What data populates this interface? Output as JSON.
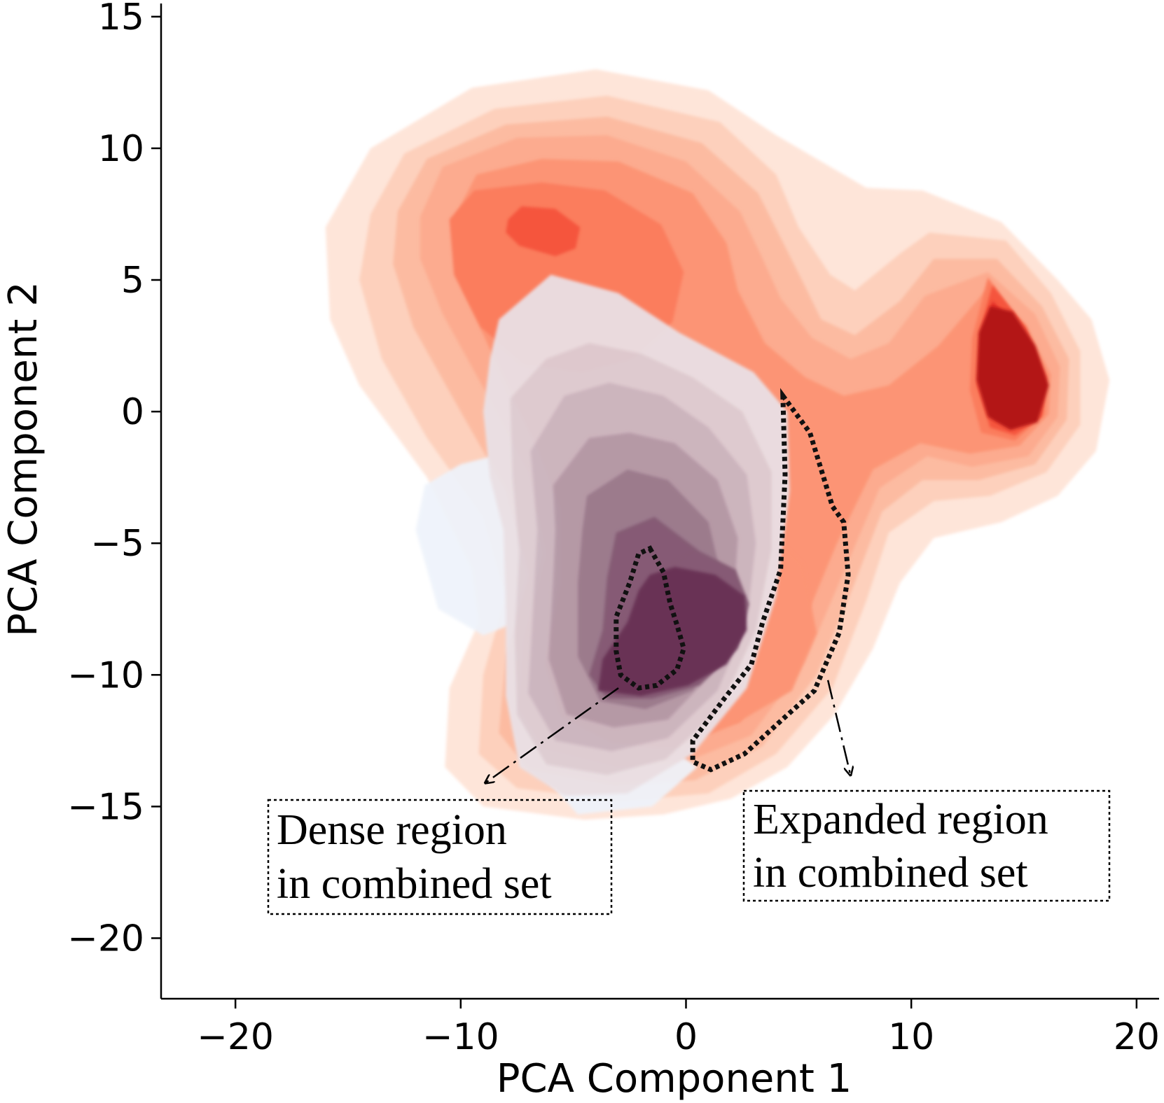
{
  "chart_data": {
    "type": "kde-contour",
    "title": "",
    "xlabel": "PCA Component 1",
    "ylabel": "PCA Component 2",
    "xlim": [
      -23.3,
      21
    ],
    "ylim": [
      -22.3,
      15.5
    ],
    "xticks": [
      -20,
      -10,
      0,
      10,
      20
    ],
    "yticks": [
      15,
      10,
      5,
      0,
      -5,
      -10,
      -15,
      -20
    ],
    "xtick_labels": [
      "−20",
      "−10",
      "0",
      "10",
      "20"
    ],
    "ytick_labels": [
      "15",
      "10",
      "5",
      "0",
      "−5",
      "−10",
      "−15",
      "−20"
    ],
    "grid": false,
    "series": [
      {
        "name": "reds-density",
        "colormap": "Reds",
        "modes": [
          {
            "x": -5.2,
            "y": 6.7,
            "weight": 0.55
          },
          {
            "x": 14.7,
            "y": 2.0,
            "weight": 1.0
          },
          {
            "x": -1.5,
            "y": -8.0,
            "weight": 0.45
          }
        ],
        "level_colors": [
          "#fee5d9",
          "#fdd0bc",
          "#fcbba1",
          "#fcab8f",
          "#fc9474",
          "#fb7d5d",
          "#f5553c",
          "#e32f27",
          "#b31218"
        ]
      },
      {
        "name": "purple-density",
        "colormap": "Purples",
        "modes": [
          {
            "x": -1.5,
            "y": -8.5,
            "weight": 1.0
          }
        ],
        "level_colors": [
          "#eef3fb",
          "#e9e2e8",
          "#dccfd7",
          "#c9b8c4",
          "#b09aaa",
          "#94798f",
          "#7b5775",
          "#5d2a52"
        ]
      }
    ],
    "annotations": [
      {
        "name": "dense-region",
        "line1": "Dense region",
        "line2": "in combined set",
        "arrow_from": [
          -3.0,
          -10.5
        ],
        "arrow_to": [
          -8.9,
          -14.1
        ]
      },
      {
        "name": "expanded-region",
        "line1": "Expanded region",
        "line2": "in combined set",
        "arrow_from": [
          6.3,
          -10.2
        ],
        "arrow_to": [
          7.3,
          -13.8
        ]
      }
    ],
    "highlight_regions": [
      {
        "name": "dense-region-outline",
        "points": [
          [
            -1.6,
            -5.2
          ],
          [
            -1.0,
            -6.1
          ],
          [
            -0.7,
            -7.3
          ],
          [
            -0.4,
            -8.1
          ],
          [
            -0.1,
            -9.0
          ],
          [
            -0.4,
            -9.8
          ],
          [
            -1.3,
            -10.4
          ],
          [
            -2.1,
            -10.5
          ],
          [
            -2.9,
            -10.0
          ],
          [
            -3.1,
            -9.1
          ],
          [
            -3.1,
            -7.8
          ],
          [
            -2.5,
            -6.5
          ],
          [
            -2.1,
            -5.4
          ]
        ]
      },
      {
        "name": "expanded-region-outline",
        "points": [
          [
            4.3,
            0.6
          ],
          [
            5.5,
            -0.8
          ],
          [
            6.5,
            -3.6
          ],
          [
            7.0,
            -4.2
          ],
          [
            7.2,
            -6.2
          ],
          [
            6.8,
            -8.4
          ],
          [
            5.7,
            -10.6
          ],
          [
            4.4,
            -11.6
          ],
          [
            2.6,
            -13.0
          ],
          [
            1.1,
            -13.6
          ],
          [
            0.3,
            -13.3
          ],
          [
            0.3,
            -12.5
          ],
          [
            1.7,
            -10.9
          ],
          [
            2.9,
            -9.6
          ],
          [
            3.4,
            -8.0
          ],
          [
            4.2,
            -6.0
          ],
          [
            4.4,
            -2.4
          ]
        ]
      }
    ]
  }
}
